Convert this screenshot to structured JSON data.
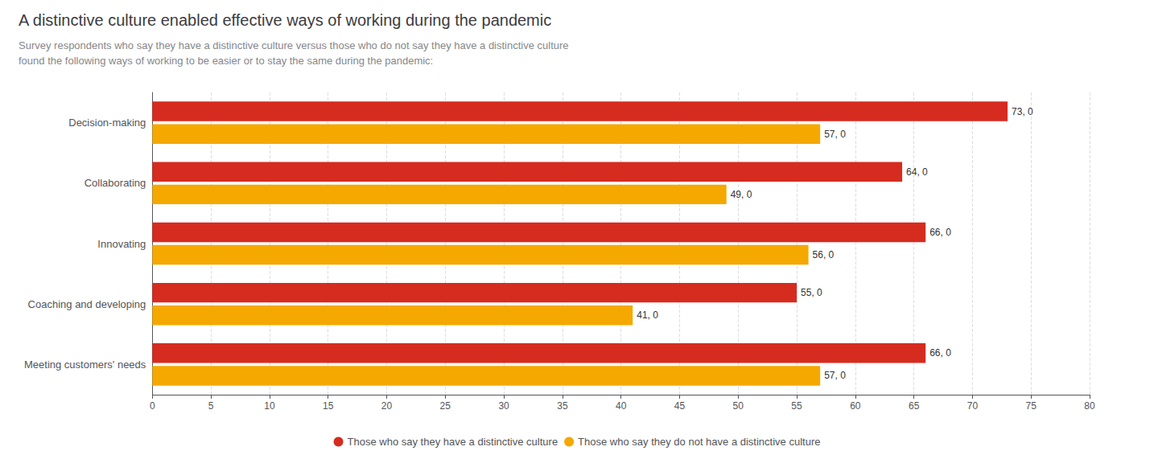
{
  "chart_data": {
    "type": "bar",
    "orientation": "horizontal",
    "title": "A distinctive culture enabled effective ways of working during the pandemic",
    "subtitle": "Survey respondents who say they have a distinctive culture versus those who do not say they have a distinctive culture\nfound the following ways of working to be easier or to stay the same during the pandemic:",
    "categories": [
      "Decision-making",
      "Collaborating",
      "Innovating",
      "Coaching and developing",
      "Meeting customers' needs"
    ],
    "series": [
      {
        "name": "Those who say they have a distinctive culture",
        "color": "#D62B1F",
        "values": [
          73,
          64,
          66,
          55,
          66
        ],
        "value_labels": [
          "73, 0",
          "64, 0",
          "66, 0",
          "55, 0",
          "66, 0"
        ]
      },
      {
        "name": "Those who say they do not have a distinctive culture",
        "color": "#F5A800",
        "values": [
          57,
          49,
          56,
          41,
          57
        ],
        "value_labels": [
          "57, 0",
          "49, 0",
          "56, 0",
          "41, 0",
          "57, 0"
        ]
      }
    ],
    "xlim": [
      0,
      80
    ],
    "xticks": [
      0,
      5,
      10,
      15,
      20,
      25,
      30,
      35,
      40,
      45,
      50,
      55,
      60,
      65,
      70,
      75,
      80
    ],
    "grid": true,
    "legend": "bottom",
    "data_labels": true
  }
}
